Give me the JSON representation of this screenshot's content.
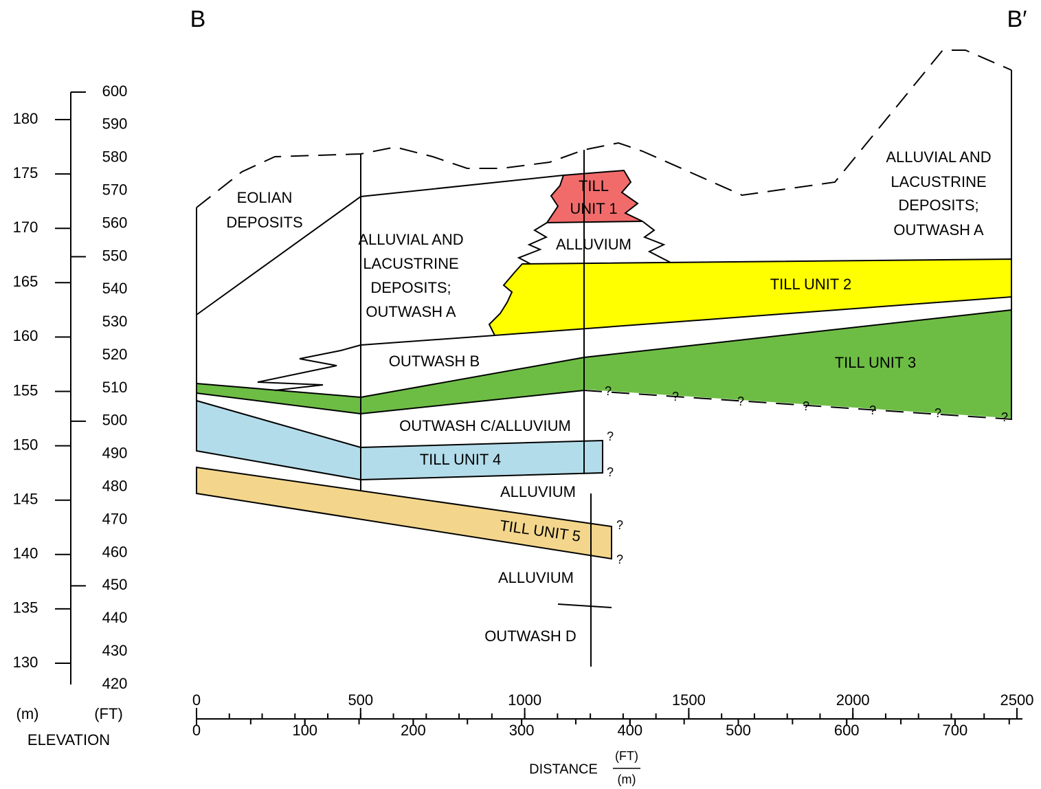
{
  "section": {
    "left_end": "B",
    "right_end": "B′"
  },
  "elevation_axis": {
    "meters": [
      180,
      175,
      170,
      165,
      160,
      155,
      150,
      145,
      140,
      135,
      130
    ],
    "feet": [
      600,
      590,
      580,
      570,
      560,
      550,
      540,
      530,
      520,
      510,
      500,
      490,
      480,
      470,
      460,
      450,
      440,
      430,
      420
    ],
    "meters_unit": "(m)",
    "feet_unit": "(FT)",
    "title": "ELEVATION"
  },
  "distance_axis": {
    "feet": [
      0,
      500,
      1000,
      1500,
      2000,
      2500
    ],
    "meters": [
      0,
      100,
      200,
      300,
      400,
      500,
      600,
      700
    ],
    "title": "DISTANCE",
    "feet_unit": "(FT)",
    "meters_unit": "(m)"
  },
  "units": [
    {
      "lines": [
        "EOLIAN",
        "DEPOSITS"
      ]
    },
    {
      "lines": [
        "ALLUVIAL AND",
        "LACUSTRINE",
        "DEPOSITS;",
        "OUTWASH A"
      ]
    },
    {
      "lines": [
        "ALLUVIAL AND",
        "LACUSTRINE",
        "DEPOSITS;",
        "OUTWASH A"
      ]
    },
    {
      "lines": [
        "TILL",
        "UNIT 1"
      ]
    },
    {
      "lines": [
        "ALLUVIUM"
      ]
    },
    {
      "lines": [
        "TILL UNIT 2"
      ]
    },
    {
      "lines": [
        "OUTWASH B"
      ]
    },
    {
      "lines": [
        "TILL UNIT 3"
      ]
    },
    {
      "lines": [
        "OUTWASH C/ALLUVIUM"
      ]
    },
    {
      "lines": [
        "TILL UNIT 4"
      ]
    },
    {
      "lines": [
        "ALLUVIUM"
      ]
    },
    {
      "lines": [
        "TILL UNIT 5"
      ]
    },
    {
      "lines": [
        "ALLUVIUM"
      ]
    },
    {
      "lines": [
        "OUTWASH D"
      ]
    }
  ],
  "queries": [
    "?",
    "?",
    "?",
    "?",
    "?",
    "?",
    "?",
    "?",
    "?",
    "?",
    "?"
  ]
}
